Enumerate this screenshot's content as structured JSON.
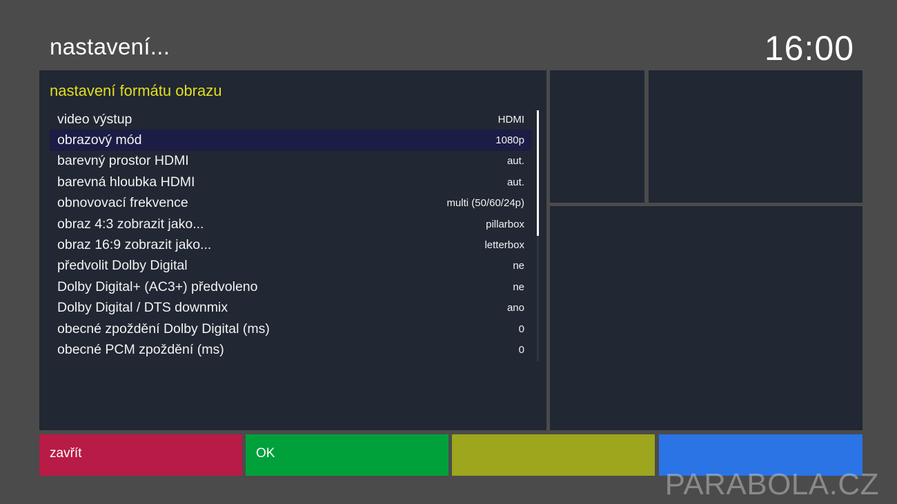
{
  "header": {
    "title": "nastavení...",
    "clock": "16:00"
  },
  "menu": {
    "heading": "nastavení formátu obrazu",
    "selected_index": 1,
    "items": [
      {
        "label": "video výstup",
        "value": "HDMI"
      },
      {
        "label": "obrazový mód",
        "value": "1080p"
      },
      {
        "label": "barevný prostor HDMI",
        "value": "aut."
      },
      {
        "label": "barevná hloubka HDMI",
        "value": "aut."
      },
      {
        "label": "obnovovací frekvence",
        "value": "multi (50/60/24p)"
      },
      {
        "label": "obraz 4:3 zobrazit jako...",
        "value": "pillarbox"
      },
      {
        "label": "obraz 16:9 zobrazit jako...",
        "value": "letterbox"
      },
      {
        "label": "předvolit Dolby Digital",
        "value": "ne"
      },
      {
        "label": "Dolby Digital+ (AC3+) předvoleno",
        "value": "ne"
      },
      {
        "label": "Dolby Digital / DTS downmix",
        "value": "ano"
      },
      {
        "label": "obecné zpoždění Dolby Digital (ms)",
        "value": "0"
      },
      {
        "label": "obecné PCM zpoždění (ms)",
        "value": "0"
      }
    ]
  },
  "buttons": {
    "red": {
      "label": "zavřít",
      "color": "#b81b45"
    },
    "green": {
      "label": "OK",
      "color": "#00a03b"
    },
    "yellow": {
      "label": "",
      "color": "#9da61d"
    },
    "blue": {
      "label": "",
      "color": "#2a74e6"
    }
  },
  "watermark": "PARABOLA.CZ",
  "colors": {
    "background": "#4b4b4b",
    "panel": "#212733",
    "heading": "#e3df1c",
    "selection": "#1b1d45"
  }
}
